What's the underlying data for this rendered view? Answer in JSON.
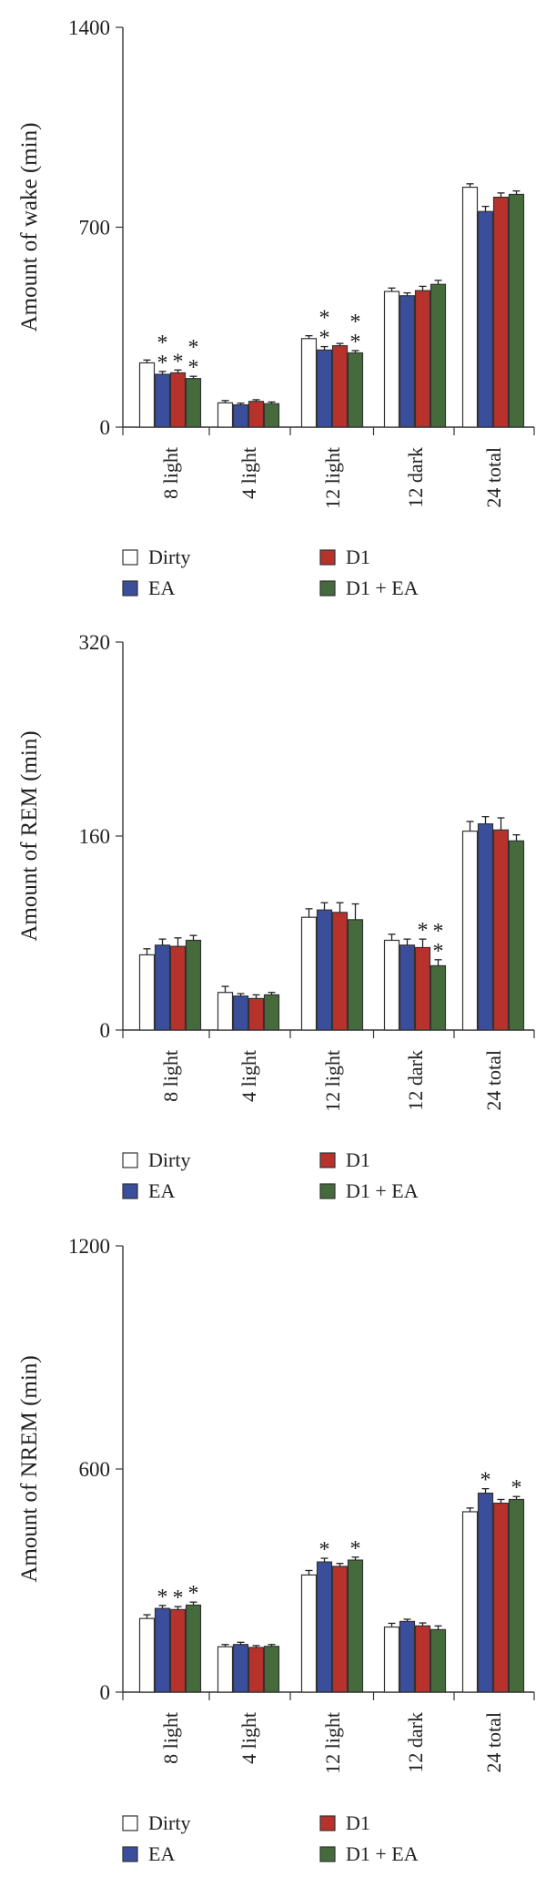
{
  "colors": {
    "Dirty": "#ffffff",
    "EA": "#3a4e9c",
    "D1": "#b8322c",
    "D1 + EA": "#456b3c"
  },
  "legend": [
    "Dirty",
    "EA",
    "D1",
    "D1 + EA"
  ],
  "chart_data": [
    {
      "type": "bar",
      "ylabel": "Amount of wake (min)",
      "ylim": [
        0,
        1400
      ],
      "yticks": [
        "0",
        "700",
        "1400"
      ],
      "categories": [
        "8 light",
        "4 light",
        "12 light",
        "12 dark",
        "24 total"
      ],
      "series": [
        {
          "name": "Dirty",
          "values": [
            225,
            85,
            310,
            475,
            840
          ],
          "errors": [
            10,
            8,
            10,
            12,
            12
          ]
        },
        {
          "name": "EA",
          "values": [
            185,
            78,
            270,
            460,
            755
          ],
          "errors": [
            10,
            6,
            12,
            10,
            18
          ]
        },
        {
          "name": "D1",
          "values": [
            190,
            90,
            285,
            478,
            805
          ],
          "errors": [
            10,
            6,
            8,
            15,
            15
          ]
        },
        {
          "name": "D1 + EA",
          "values": [
            170,
            82,
            260,
            500,
            815
          ],
          "errors": [
            8,
            6,
            8,
            14,
            12
          ]
        }
      ],
      "annotations": [
        {
          "category": "8 light",
          "series": "EA",
          "text": "*"
        },
        {
          "category": "8 light",
          "series": "EA",
          "text": "*"
        },
        {
          "category": "8 light",
          "series": "D1",
          "text": "*"
        },
        {
          "category": "8 light",
          "series": "D1 + EA",
          "text": "*"
        },
        {
          "category": "8 light",
          "series": "D1 + EA",
          "text": "*"
        },
        {
          "category": "12 light",
          "series": "EA",
          "text": "*"
        },
        {
          "category": "12 light",
          "series": "EA",
          "text": "*"
        },
        {
          "category": "12 light",
          "series": "D1 + EA",
          "text": "*"
        },
        {
          "category": "12 light",
          "series": "D1 + EA",
          "text": "*"
        }
      ]
    },
    {
      "type": "bar",
      "ylabel": "Amount of REM (min)",
      "ylim": [
        0,
        320
      ],
      "yticks": [
        "0",
        "160",
        "320"
      ],
      "categories": [
        "8 light",
        "4 light",
        "12 light",
        "12 dark",
        "24 total"
      ],
      "series": [
        {
          "name": "Dirty",
          "values": [
            62,
            31,
            93,
            74,
            164
          ],
          "errors": [
            5,
            5,
            7,
            5,
            8
          ]
        },
        {
          "name": "EA",
          "values": [
            70,
            28,
            99,
            70,
            170
          ],
          "errors": [
            5,
            2,
            6,
            5,
            6
          ]
        },
        {
          "name": "D1",
          "values": [
            69,
            26,
            97,
            68,
            165
          ],
          "errors": [
            7,
            3,
            8,
            7,
            10
          ]
        },
        {
          "name": "D1 + EA",
          "values": [
            74,
            29,
            91,
            53,
            156
          ],
          "errors": [
            4,
            2,
            13,
            5,
            5
          ]
        }
      ],
      "annotations": [
        {
          "category": "12 dark",
          "series": "D1",
          "text": "*"
        },
        {
          "category": "12 dark",
          "series": "D1 + EA",
          "text": "*"
        },
        {
          "category": "12 dark",
          "series": "D1 + EA",
          "text": "*"
        }
      ]
    },
    {
      "type": "bar",
      "ylabel": "Amount of NREM (min)",
      "ylim": [
        0,
        1200
      ],
      "yticks": [
        "0",
        "600",
        "1200"
      ],
      "categories": [
        "8 light",
        "4 light",
        "12 light",
        "12 dark",
        "24 total"
      ],
      "series": [
        {
          "name": "Dirty",
          "values": [
            198,
            122,
            315,
            175,
            485
          ],
          "errors": [
            10,
            6,
            12,
            10,
            10
          ]
        },
        {
          "name": "EA",
          "values": [
            225,
            128,
            350,
            190,
            535
          ],
          "errors": [
            8,
            6,
            10,
            6,
            12
          ]
        },
        {
          "name": "D1",
          "values": [
            222,
            120,
            338,
            178,
            508
          ],
          "errors": [
            8,
            5,
            8,
            8,
            10
          ]
        },
        {
          "name": "D1 + EA",
          "values": [
            234,
            123,
            355,
            168,
            518
          ],
          "errors": [
            8,
            5,
            8,
            10,
            8
          ]
        }
      ],
      "annotations": [
        {
          "category": "8 light",
          "series": "EA",
          "text": "*"
        },
        {
          "category": "8 light",
          "series": "D1",
          "text": "*"
        },
        {
          "category": "8 light",
          "series": "D1 + EA",
          "text": "*"
        },
        {
          "category": "12 light",
          "series": "EA",
          "text": "*"
        },
        {
          "category": "12 light",
          "series": "D1 + EA",
          "text": "*"
        },
        {
          "category": "24 total",
          "series": "EA",
          "text": "*"
        },
        {
          "category": "24 total",
          "series": "D1 + EA",
          "text": "*"
        }
      ]
    }
  ]
}
